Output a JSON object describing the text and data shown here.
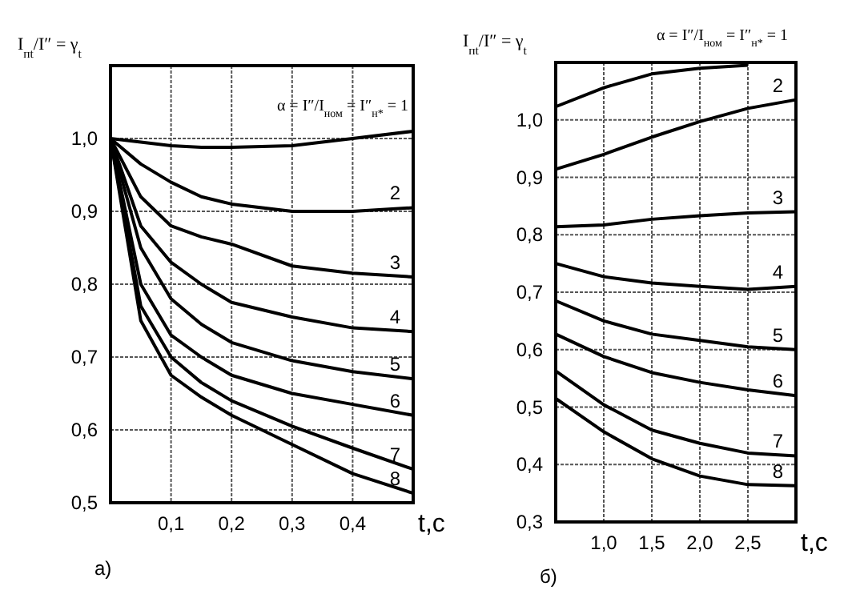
{
  "chart_data": [
    {
      "type": "line",
      "title": "а)",
      "xlabel": "t,c",
      "ylabel": "I$_{пt}$/I″ = γ$_{t}$",
      "annotations": [
        "α = I″/I$_{ном}$ = I″$_{н*}$ = 1"
      ],
      "x": [
        0,
        0.05,
        0.1,
        0.15,
        0.2,
        0.3,
        0.4,
        0.5
      ],
      "xlim": [
        0,
        0.5
      ],
      "ylim": [
        0.5,
        1.1
      ],
      "xticks": [
        {
          "value": 0.1,
          "label": "0,1"
        },
        {
          "value": 0.2,
          "label": "0,2"
        },
        {
          "value": 0.3,
          "label": "0,3"
        },
        {
          "value": 0.4,
          "label": "0,4"
        }
      ],
      "yticks": [
        {
          "value": 0.5,
          "label": "0,5"
        },
        {
          "value": 0.6,
          "label": "0,6"
        },
        {
          "value": 0.7,
          "label": "0,7"
        },
        {
          "value": 0.8,
          "label": "0,8"
        },
        {
          "value": 0.9,
          "label": "0,9"
        },
        {
          "value": 1.0,
          "label": "1,0"
        }
      ],
      "grid": true,
      "series": [
        {
          "color": "#000000",
          "values": [
            1.0,
            0.995,
            0.99,
            0.988,
            0.988,
            0.99,
            1.0,
            1.01
          ]
        },
        {
          "name": "2",
          "color": "#000000",
          "values": [
            1.0,
            0.965,
            0.94,
            0.92,
            0.91,
            0.9,
            0.9,
            0.905
          ]
        },
        {
          "name": "3",
          "color": "#000000",
          "values": [
            1.0,
            0.92,
            0.88,
            0.865,
            0.855,
            0.825,
            0.815,
            0.81
          ]
        },
        {
          "name": "4",
          "color": "#000000",
          "values": [
            1.0,
            0.88,
            0.83,
            0.8,
            0.775,
            0.755,
            0.74,
            0.735
          ]
        },
        {
          "name": "5",
          "color": "#000000",
          "values": [
            1.0,
            0.85,
            0.78,
            0.745,
            0.72,
            0.695,
            0.68,
            0.67
          ]
        },
        {
          "name": "6",
          "color": "#000000",
          "values": [
            1.0,
            0.8,
            0.73,
            0.7,
            0.675,
            0.65,
            0.635,
            0.62
          ]
        },
        {
          "name": "7",
          "color": "#000000",
          "values": [
            1.0,
            0.77,
            0.7,
            0.665,
            0.64,
            0.605,
            0.575,
            0.546
          ]
        },
        {
          "name": "8",
          "color": "#000000",
          "values": [
            1.0,
            0.75,
            0.675,
            0.645,
            0.62,
            0.58,
            0.54,
            0.513
          ]
        }
      ]
    },
    {
      "type": "line",
      "title": "б)",
      "xlabel": "t,c",
      "ylabel": "I$_{пt}$/I″ = γ$_{t}$",
      "annotations": [
        "α = I″/I$_{ном}$ = I″$_{н*}$ = 1"
      ],
      "x": [
        0.5,
        1.0,
        1.5,
        2.0,
        2.5,
        3.0
      ],
      "xlim": [
        0.5,
        3.0
      ],
      "ylim": [
        0.3,
        1.1
      ],
      "xticks": [
        {
          "value": 1.0,
          "label": "1,0"
        },
        {
          "value": 1.5,
          "label": "1,5"
        },
        {
          "value": 2.0,
          "label": "2,0"
        },
        {
          "value": 2.5,
          "label": "2,5"
        }
      ],
      "yticks": [
        {
          "value": 0.3,
          "label": "0,3"
        },
        {
          "value": 0.4,
          "label": "0,4"
        },
        {
          "value": 0.5,
          "label": "0,5"
        },
        {
          "value": 0.6,
          "label": "0,6"
        },
        {
          "value": 0.7,
          "label": "0,7"
        },
        {
          "value": 0.8,
          "label": "0,8"
        },
        {
          "value": 0.9,
          "label": "0,9"
        },
        {
          "value": 1.0,
          "label": "1,0"
        }
      ],
      "grid": true,
      "series": [
        {
          "color": "#000000",
          "values": [
            1.023,
            1.056,
            1.08,
            1.09,
            1.095,
            null
          ]
        },
        {
          "name": "2",
          "color": "#000000",
          "values": [
            0.914,
            0.94,
            0.97,
            0.997,
            1.02,
            1.035
          ]
        },
        {
          "name": "3",
          "color": "#000000",
          "values": [
            0.814,
            0.817,
            0.827,
            0.833,
            0.838,
            0.84
          ]
        },
        {
          "name": "4",
          "color": "#000000",
          "values": [
            0.75,
            0.727,
            0.716,
            0.71,
            0.705,
            0.71
          ]
        },
        {
          "name": "5",
          "color": "#000000",
          "values": [
            0.685,
            0.65,
            0.627,
            0.616,
            0.605,
            0.6
          ]
        },
        {
          "name": "6",
          "color": "#000000",
          "values": [
            0.627,
            0.588,
            0.56,
            0.543,
            0.53,
            0.52
          ]
        },
        {
          "name": "7",
          "color": "#000000",
          "values": [
            0.563,
            0.504,
            0.46,
            0.437,
            0.42,
            0.415
          ]
        },
        {
          "name": "8",
          "color": "#000000",
          "values": [
            0.515,
            0.457,
            0.41,
            0.38,
            0.365,
            0.363
          ]
        }
      ]
    }
  ]
}
